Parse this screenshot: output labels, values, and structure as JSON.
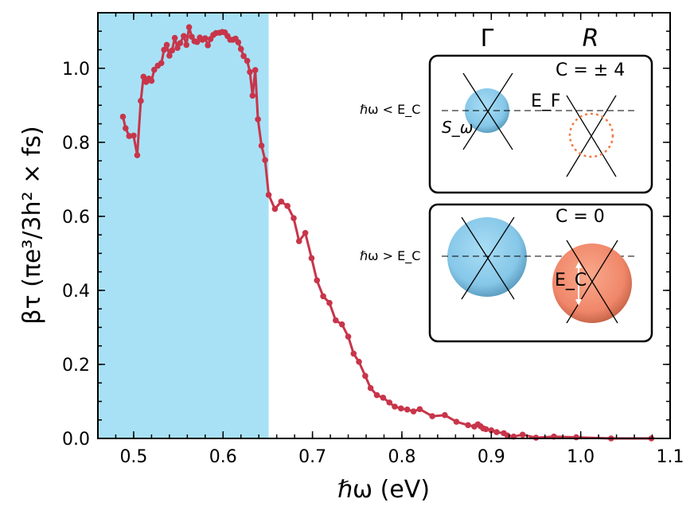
{
  "chart_data": {
    "type": "line",
    "xlabel": "ℏω (eV)",
    "ylabel": "βτ  (πe³/3h² × fs)",
    "xlim": [
      0.46,
      1.1
    ],
    "ylim": [
      0.0,
      1.15
    ],
    "xticks": [
      "0.5",
      "0.6",
      "0.7",
      "0.8",
      "0.9",
      "1.0",
      "1.1"
    ],
    "yticks": [
      "0.0",
      "0.2",
      "0.4",
      "0.6",
      "0.8",
      "1.0"
    ],
    "shaded_region": {
      "x_from": 0.46,
      "x_to": 0.651,
      "color": "#a8e1f5"
    },
    "series": [
      {
        "color": "#c8354a",
        "x": [
          0.488,
          0.491,
          0.495,
          0.5,
          0.504,
          0.508,
          0.511,
          0.514,
          0.517,
          0.52,
          0.523,
          0.527,
          0.531,
          0.534,
          0.537,
          0.54,
          0.543,
          0.546,
          0.549,
          0.552,
          0.556,
          0.559,
          0.562,
          0.565,
          0.568,
          0.571,
          0.574,
          0.577,
          0.58,
          0.583,
          0.586,
          0.589,
          0.592,
          0.596,
          0.599,
          0.602,
          0.605,
          0.608,
          0.611,
          0.614,
          0.617,
          0.62,
          0.623,
          0.627,
          0.63,
          0.633,
          0.636,
          0.639,
          0.643,
          0.647,
          0.651,
          0.658,
          0.665,
          0.672,
          0.679,
          0.685,
          0.692,
          0.699,
          0.705,
          0.712,
          0.719,
          0.726,
          0.733,
          0.74,
          0.746,
          0.752,
          0.759,
          0.765,
          0.772,
          0.779,
          0.786,
          0.792,
          0.799,
          0.806,
          0.813,
          0.82,
          0.834,
          0.848,
          0.861,
          0.874,
          0.881,
          0.885,
          0.888,
          0.891,
          0.894,
          0.9,
          0.906,
          0.914,
          0.918,
          0.925,
          0.935,
          0.95,
          0.97,
          0.995,
          1.034,
          1.079
        ],
        "values": [
          0.869,
          0.838,
          0.817,
          0.818,
          0.765,
          0.912,
          0.977,
          0.963,
          0.972,
          0.966,
          0.996,
          1.007,
          1.014,
          1.05,
          1.063,
          1.034,
          1.048,
          1.082,
          1.055,
          1.068,
          1.087,
          1.063,
          1.111,
          1.085,
          1.073,
          1.071,
          1.083,
          1.077,
          1.081,
          1.062,
          1.079,
          1.09,
          1.095,
          1.096,
          1.098,
          1.097,
          1.087,
          1.077,
          1.077,
          1.08,
          1.07,
          1.052,
          1.033,
          1.02,
          0.99,
          0.926,
          0.995,
          0.862,
          0.791,
          0.752,
          0.658,
          0.62,
          0.64,
          0.628,
          0.595,
          0.533,
          0.555,
          0.487,
          0.427,
          0.384,
          0.366,
          0.319,
          0.308,
          0.275,
          0.229,
          0.207,
          0.169,
          0.136,
          0.117,
          0.11,
          0.097,
          0.086,
          0.081,
          0.078,
          0.073,
          0.079,
          0.06,
          0.063,
          0.045,
          0.036,
          0.032,
          0.038,
          0.033,
          0.027,
          0.025,
          0.022,
          0.017,
          0.014,
          0.008,
          0.005,
          0.01,
          0.002,
          0.005,
          0.003,
          0.0,
          0.0
        ]
      }
    ]
  },
  "inset": {
    "col_gamma": "Γ",
    "col_r": "R",
    "top_panel": {
      "condition": "ℏω < E_C",
      "chern": "C = ± 4",
      "fermi": "E_F",
      "s_omega": "S_ω"
    },
    "bottom_panel": {
      "condition": "ℏω > E_C",
      "chern": "C = 0",
      "ec_label": "E_C"
    }
  }
}
